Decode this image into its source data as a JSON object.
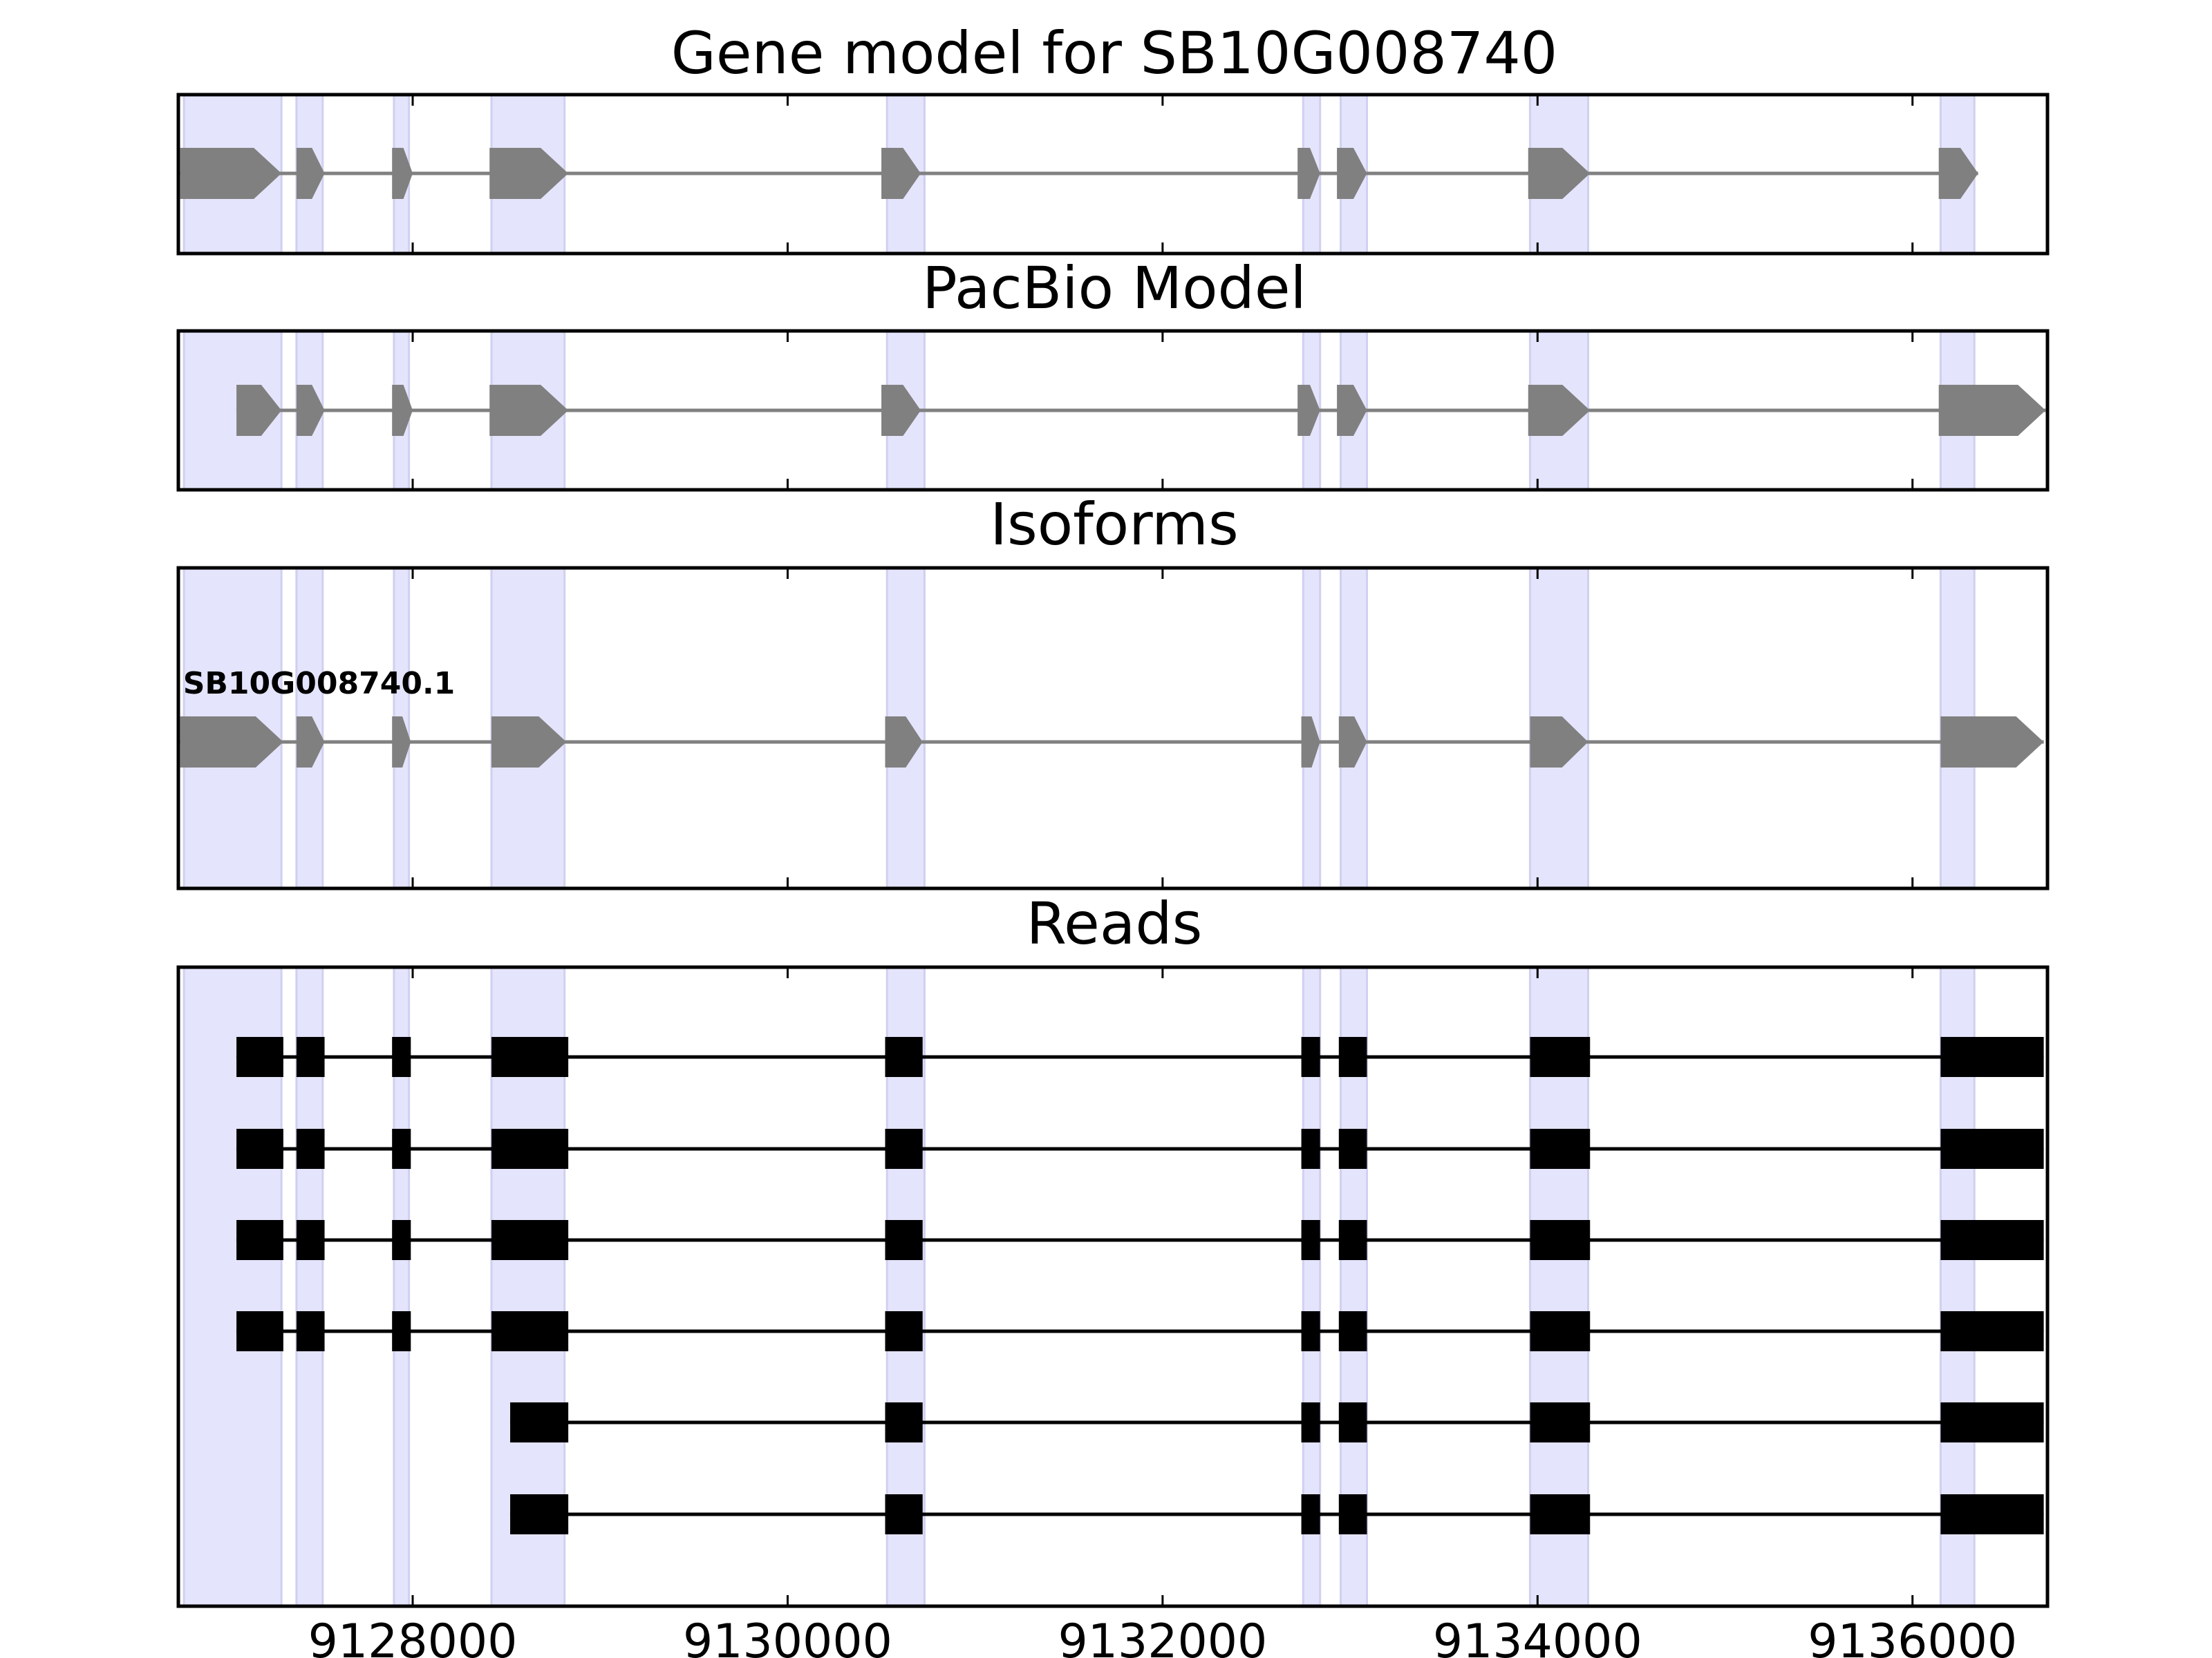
{
  "chart_data": {
    "type": "gene-track",
    "xlim": [
      9126750,
      9136720
    ],
    "xticks": [
      9128000,
      9130000,
      9132000,
      9134000,
      9136000
    ],
    "colors": {
      "highlight": "#e4e4fc",
      "highlight_edge": "#d0d0f0",
      "feature_gray": "#808080",
      "read_black": "#000000",
      "axis": "#000000"
    },
    "highlight_regions": [
      [
        9126780,
        9127300
      ],
      [
        9127380,
        9127520
      ],
      [
        9127900,
        9127980
      ],
      [
        9128420,
        9128810
      ],
      [
        9130530,
        9130730
      ],
      [
        9132750,
        9132840
      ],
      [
        9132950,
        9133090
      ],
      [
        9133960,
        9134270
      ],
      [
        9136150,
        9136330
      ]
    ],
    "panels": [
      {
        "title": "Gene model for SB10G008740",
        "kind": "arrows",
        "rows": [
          {
            "label": "",
            "exons": [
              [
                9126760,
                9127300
              ],
              [
                9127380,
                9127530
              ],
              [
                9127890,
                9128000
              ],
              [
                9128410,
                9128830
              ],
              [
                9130500,
                9130710
              ],
              [
                9132720,
                9132840
              ],
              [
                9132930,
                9133090
              ],
              [
                9133950,
                9134280
              ],
              [
                9136140,
                9136350
              ]
            ]
          }
        ]
      },
      {
        "title": "PacBio Model",
        "kind": "arrows",
        "rows": [
          {
            "label": "",
            "exons": [
              [
                9127060,
                9127300
              ],
              [
                9127380,
                9127530
              ],
              [
                9127890,
                9128000
              ],
              [
                9128410,
                9128830
              ],
              [
                9130500,
                9130710
              ],
              [
                9132720,
                9132840
              ],
              [
                9132930,
                9133090
              ],
              [
                9133950,
                9134280
              ],
              [
                9136140,
                9136710
              ]
            ]
          }
        ]
      },
      {
        "title": "Isoforms",
        "kind": "arrows",
        "rows": [
          {
            "label": "SB10G008740.1",
            "exons": [
              [
                9126760,
                9127310
              ],
              [
                9127380,
                9127530
              ],
              [
                9127890,
                9127990
              ],
              [
                9128420,
                9128820
              ],
              [
                9130520,
                9130720
              ],
              [
                9132740,
                9132840
              ],
              [
                9132940,
                9133090
              ],
              [
                9133960,
                9134270
              ],
              [
                9136150,
                9136700
              ]
            ]
          }
        ]
      },
      {
        "title": "Reads",
        "kind": "blocks",
        "rows": [
          {
            "label": "",
            "exons": [
              [
                9127060,
                9127310
              ],
              [
                9127380,
                9127530
              ],
              [
                9127890,
                9127990
              ],
              [
                9128420,
                9128830
              ],
              [
                9130520,
                9130720
              ],
              [
                9132740,
                9132840
              ],
              [
                9132940,
                9133090
              ],
              [
                9133960,
                9134280
              ],
              [
                9136150,
                9136700
              ]
            ]
          },
          {
            "label": "",
            "exons": [
              [
                9127060,
                9127310
              ],
              [
                9127380,
                9127530
              ],
              [
                9127890,
                9127990
              ],
              [
                9128420,
                9128830
              ],
              [
                9130520,
                9130720
              ],
              [
                9132740,
                9132840
              ],
              [
                9132940,
                9133090
              ],
              [
                9133960,
                9134280
              ],
              [
                9136150,
                9136700
              ]
            ]
          },
          {
            "label": "",
            "exons": [
              [
                9127060,
                9127310
              ],
              [
                9127380,
                9127530
              ],
              [
                9127890,
                9127990
              ],
              [
                9128420,
                9128830
              ],
              [
                9130520,
                9130720
              ],
              [
                9132740,
                9132840
              ],
              [
                9132940,
                9133090
              ],
              [
                9133960,
                9134280
              ],
              [
                9136150,
                9136700
              ]
            ]
          },
          {
            "label": "",
            "exons": [
              [
                9127060,
                9127310
              ],
              [
                9127380,
                9127530
              ],
              [
                9127890,
                9127990
              ],
              [
                9128420,
                9128830
              ],
              [
                9130520,
                9130720
              ],
              [
                9132740,
                9132840
              ],
              [
                9132940,
                9133090
              ],
              [
                9133960,
                9134280
              ],
              [
                9136150,
                9136700
              ]
            ]
          },
          {
            "label": "",
            "exons": [
              [
                9128520,
                9128830
              ],
              [
                9130520,
                9130720
              ],
              [
                9132740,
                9132840
              ],
              [
                9132940,
                9133090
              ],
              [
                9133960,
                9134280
              ],
              [
                9136150,
                9136700
              ]
            ]
          },
          {
            "label": "",
            "exons": [
              [
                9128520,
                9128830
              ],
              [
                9130520,
                9130720
              ],
              [
                9132740,
                9132840
              ],
              [
                9132940,
                9133090
              ],
              [
                9133960,
                9134280
              ],
              [
                9136150,
                9136700
              ]
            ]
          }
        ]
      }
    ]
  }
}
